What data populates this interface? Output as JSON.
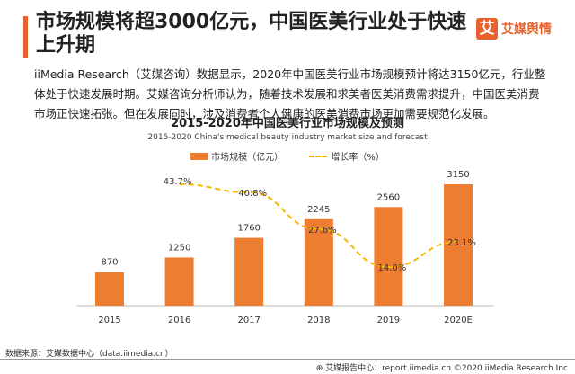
{
  "header": {
    "title": "市场规模将超3000亿元，中国医美行业处于快速上升期",
    "logo_text": "艾媒舆情",
    "logo_mark": "艾",
    "logo_tagline": "iiMedia Public Opinion Consultation"
  },
  "body_text": "iiMedia Research（艾媒咨询）数据显示，2020年中国医美行业市场规模预计将达3150亿元，行业整体处于快速发展时期。艾媒咨询分析师认为，随着技术发展和求美者医美消费需求提升，中国医美消费市场正快速拓张。但在发展同时，涉及消费者个人健康的医美消费市场更加需要规范化发展。",
  "chart_data": {
    "type": "bar",
    "title": "2015-2020年中国医美行业市场规模及预测",
    "subtitle": "2015-2020 China's medical beauty industry market size and forecast",
    "categories": [
      "2015",
      "2016",
      "2017",
      "2018",
      "2019",
      "2020E"
    ],
    "series": [
      {
        "name": "市场规模（亿元）",
        "type": "bar",
        "color": "#ed7d31",
        "values": [
          870,
          1250,
          1760,
          2245,
          2560,
          3150
        ],
        "labels": [
          "870",
          "1250",
          "1760",
          "2245",
          "2560",
          "3150"
        ]
      },
      {
        "name": "增长率（%）",
        "type": "line",
        "style": "dashed",
        "color": "#f5b800",
        "values": [
          null,
          43.7,
          40.8,
          27.6,
          14.0,
          23.1
        ],
        "labels": [
          "",
          "43.7%",
          "40.8%",
          "27.6%",
          "14.0%",
          "23.1%"
        ]
      }
    ],
    "legend": "top-center",
    "grid": false,
    "ylim": [
      0,
      3500
    ]
  },
  "footer": {
    "source": "数据来源：艾媒数据中心（data.iimedia.cn）",
    "credit": "艾媒报告中心：report.iimedia.cn  ©2020  iiMedia Research Inc"
  }
}
